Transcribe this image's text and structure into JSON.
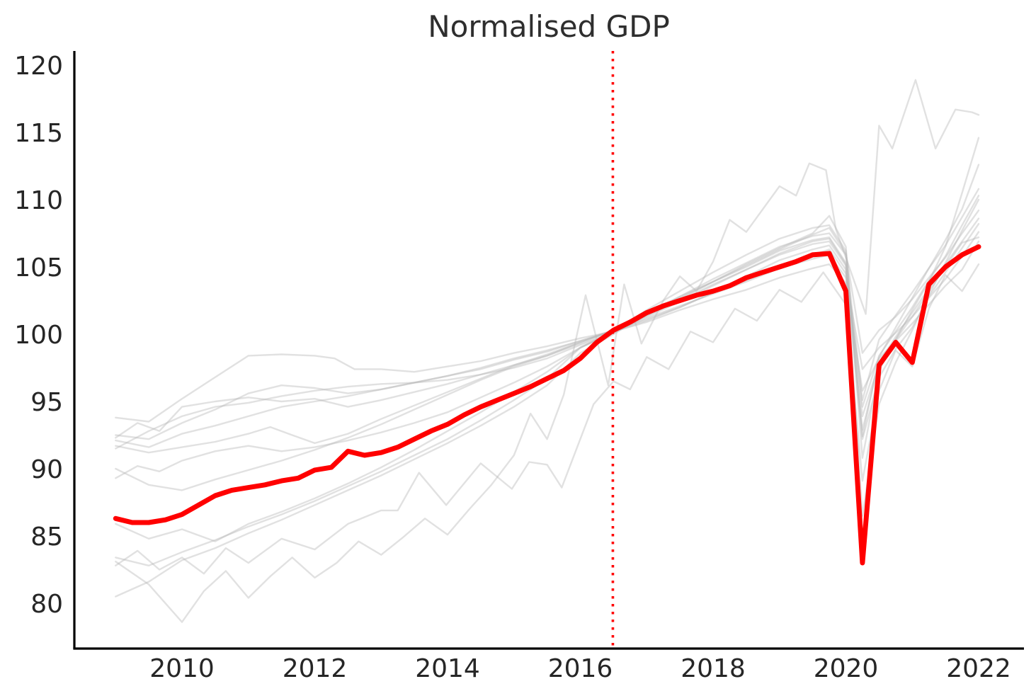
{
  "title": "Normalised GDP",
  "colors": {
    "highlight": "#ff0000",
    "event_line": "#ff0000",
    "background_lines": "#b8b8b8",
    "axis": "#000000",
    "text": "#262626",
    "background": "#ffffff"
  },
  "chart_data": {
    "type": "line",
    "title": "Normalised GDP",
    "xlabel": "",
    "ylabel": "",
    "grid": false,
    "legend": "none",
    "x_ticks": [
      2010,
      2012,
      2014,
      2016,
      2018,
      2020,
      2022
    ],
    "y_ticks": [
      80,
      85,
      90,
      95,
      100,
      105,
      110,
      115,
      120
    ],
    "x_range": [
      2008.38,
      2022.68
    ],
    "y_range": [
      76.6,
      121.1
    ],
    "event_line": {
      "x": 2016.49,
      "style": "dotted",
      "color": "#ff0000"
    },
    "normalization_note": "all series pass near 100 at the dotted line (mid-2016)",
    "highlight_series": {
      "name": "highlighted-country",
      "color": "#ff0000",
      "x": [
        2009.0,
        2009.25,
        2009.5,
        2009.75,
        2010.0,
        2010.25,
        2010.5,
        2010.75,
        2011.0,
        2011.25,
        2011.5,
        2011.75,
        2012.0,
        2012.25,
        2012.5,
        2012.75,
        2013.0,
        2013.25,
        2013.5,
        2013.75,
        2014.0,
        2014.25,
        2014.5,
        2014.75,
        2015.0,
        2015.25,
        2015.5,
        2015.75,
        2016.0,
        2016.25,
        2016.5,
        2016.75,
        2017.0,
        2017.25,
        2017.5,
        2017.75,
        2018.0,
        2018.25,
        2018.5,
        2018.75,
        2019.0,
        2019.25,
        2019.5,
        2019.75,
        2020.0,
        2020.25,
        2020.5,
        2020.75,
        2021.0,
        2021.25,
        2021.5,
        2021.75,
        2022.0
      ],
      "values": [
        86.3,
        86.0,
        86.0,
        86.2,
        86.6,
        87.3,
        88.0,
        88.4,
        88.6,
        88.8,
        89.1,
        89.3,
        89.9,
        90.1,
        91.3,
        91.0,
        91.2,
        91.6,
        92.2,
        92.8,
        93.3,
        94.0,
        94.6,
        95.1,
        95.6,
        96.1,
        96.7,
        97.3,
        98.2,
        99.4,
        100.3,
        100.9,
        101.6,
        102.1,
        102.5,
        102.9,
        103.2,
        103.6,
        104.2,
        104.6,
        105.0,
        105.4,
        105.9,
        106.0,
        103.2,
        83.0,
        97.7,
        99.4,
        97.9,
        103.7,
        105.0,
        105.9,
        106.5
      ]
    },
    "background_series": [
      {
        "name": "gray-1",
        "x": [
          2009,
          2009.5,
          2010,
          2010.5,
          2011,
          2011.5,
          2012,
          2012.3,
          2012.6,
          2013,
          2013.5,
          2014,
          2014.5,
          2015,
          2015.5,
          2016,
          2016.5,
          2017,
          2017.5,
          2018,
          2018.5,
          2019,
          2019.5,
          2019.75,
          2020,
          2020.25,
          2020.5,
          2020.75,
          2021,
          2021.25,
          2021.5,
          2021.75,
          2022
        ],
        "values": [
          93.8,
          93.5,
          95.2,
          96.8,
          98.4,
          98.5,
          98.4,
          98.2,
          97.4,
          97.4,
          97.2,
          97.6,
          98.0,
          98.6,
          99.1,
          99.7,
          100.2,
          100.9,
          101.8,
          102.6,
          103.3,
          104.2,
          104.9,
          105.2,
          103.8,
          95.8,
          98.2,
          99.5,
          100.8,
          102.2,
          103.6,
          104.8,
          106.9
        ]
      },
      {
        "name": "gray-2",
        "x": [
          2009,
          2009.5,
          2010,
          2010.5,
          2011,
          2011.5,
          2012,
          2012.5,
          2013,
          2013.5,
          2014,
          2014.5,
          2015,
          2015.5,
          2016,
          2016.5,
          2017,
          2017.5,
          2018,
          2018.5,
          2019,
          2019.5,
          2019.75,
          2020,
          2020.25,
          2020.5,
          2020.75,
          2021,
          2021.25,
          2021.5,
          2021.75,
          2022
        ],
        "values": [
          92.5,
          92.2,
          93.4,
          94.4,
          95.6,
          96.2,
          96.0,
          95.6,
          95.9,
          96.4,
          96.9,
          97.4,
          98.1,
          98.7,
          99.5,
          100.3,
          101.1,
          102.0,
          103.1,
          104.0,
          105.1,
          105.9,
          106.3,
          104.5,
          92.2,
          96.8,
          98.9,
          100.5,
          102.8,
          104.6,
          106.4,
          108.2
        ]
      },
      {
        "name": "gray-3",
        "x": [
          2009,
          2009.33,
          2009.66,
          2010,
          2010.5,
          2011,
          2011.5,
          2012,
          2012.5,
          2013,
          2013.5,
          2014,
          2014.5,
          2015,
          2015.5,
          2016,
          2016.5,
          2017,
          2017.5,
          2018,
          2018.5,
          2019,
          2019.5,
          2019.75,
          2020,
          2020.25,
          2020.5,
          2020.75,
          2021,
          2021.25,
          2021.5,
          2021.75,
          2022
        ],
        "values": [
          92.3,
          93.4,
          92.8,
          94.6,
          95.0,
          95.3,
          95.0,
          95.2,
          94.6,
          95.1,
          95.7,
          96.3,
          97.0,
          97.7,
          98.4,
          99.4,
          100.3,
          101.3,
          102.4,
          103.6,
          104.8,
          106.0,
          106.9,
          107.1,
          105.2,
          94.6,
          98.4,
          100.2,
          102.0,
          104.0,
          105.8,
          108.1,
          110.3
        ]
      },
      {
        "name": "gray-4",
        "x": [
          2009,
          2009.5,
          2010,
          2010.5,
          2011,
          2011.5,
          2012,
          2012.5,
          2013,
          2013.5,
          2014,
          2014.5,
          2015,
          2015.5,
          2016,
          2016.5,
          2017,
          2017.5,
          2018,
          2018.5,
          2019,
          2019.5,
          2019.75,
          2020,
          2020.25,
          2020.5,
          2020.75,
          2021,
          2021.25,
          2021.5,
          2021.75,
          2022
        ],
        "values": [
          92.1,
          91.6,
          92.6,
          93.2,
          93.9,
          94.6,
          95.0,
          95.4,
          95.9,
          96.4,
          96.9,
          97.5,
          98.2,
          98.8,
          99.5,
          100.2,
          101.2,
          102.1,
          103.0,
          103.9,
          104.9,
          105.6,
          105.9,
          104.2,
          97.4,
          99.0,
          100.1,
          101.3,
          102.7,
          104.1,
          105.8,
          107.6
        ]
      },
      {
        "name": "gray-5",
        "x": [
          2009,
          2009.5,
          2010,
          2010.5,
          2011,
          2011.33,
          2011.66,
          2012,
          2012.5,
          2013,
          2013.5,
          2014,
          2014.5,
          2015,
          2015.5,
          2016,
          2016.5,
          2017,
          2017.5,
          2018,
          2018.5,
          2019,
          2019.5,
          2019.75,
          2020,
          2020.25,
          2020.5,
          2020.75,
          2021,
          2021.25,
          2021.5,
          2021.75,
          2022
        ],
        "values": [
          91.7,
          91.2,
          91.6,
          92.0,
          92.6,
          93.1,
          92.5,
          91.9,
          92.6,
          93.7,
          94.7,
          95.7,
          96.7,
          97.7,
          98.5,
          99.4,
          100.3,
          101.5,
          102.8,
          104.1,
          105.3,
          106.5,
          107.3,
          107.5,
          105.9,
          95.1,
          99.6,
          101.4,
          103.1,
          104.9,
          106.6,
          108.7,
          110.8
        ]
      },
      {
        "name": "gray-6",
        "x": [
          2009,
          2009.5,
          2010,
          2010.5,
          2011,
          2011.5,
          2012,
          2012.5,
          2013,
          2013.5,
          2014,
          2014.5,
          2015,
          2015.5,
          2016,
          2016.5,
          2017,
          2017.5,
          2018,
          2018.5,
          2019,
          2019.5,
          2019.75,
          2020,
          2020.25,
          2020.5,
          2020.75,
          2021,
          2021.25,
          2021.5,
          2021.75,
          2022
        ],
        "values": [
          91.5,
          92.8,
          93.9,
          94.6,
          94.9,
          95.4,
          95.8,
          96.1,
          96.3,
          96.4,
          96.6,
          97.0,
          97.5,
          98.2,
          99.2,
          100.1,
          101.4,
          102.6,
          103.9,
          105.1,
          106.3,
          107.4,
          107.9,
          106.0,
          98.6,
          100.3,
          101.3,
          102.6,
          104.2,
          105.7,
          107.5,
          109.2
        ]
      },
      {
        "name": "gray-7",
        "x": [
          2009,
          2009.5,
          2010,
          2010.5,
          2011,
          2011.5,
          2012,
          2012.5,
          2013,
          2013.5,
          2014,
          2014.5,
          2015,
          2015.5,
          2016,
          2016.5,
          2017,
          2017.5,
          2018,
          2018.5,
          2019,
          2019.5,
          2019.75,
          2020,
          2020.25,
          2020.5,
          2020.75,
          2021,
          2021.25,
          2021.5,
          2021.75,
          2022
        ],
        "values": [
          90.0,
          88.8,
          88.4,
          89.2,
          89.9,
          90.6,
          91.4,
          92.3,
          93.3,
          94.4,
          95.5,
          96.6,
          97.6,
          98.4,
          99.3,
          100.2,
          101.0,
          102.0,
          103.1,
          104.3,
          105.5,
          106.3,
          106.6,
          104.8,
          92.9,
          97.9,
          99.8,
          101.6,
          103.4,
          105.2,
          106.9,
          108.6
        ]
      },
      {
        "name": "gray-8",
        "x": [
          2009,
          2009.33,
          2009.66,
          2010,
          2010.5,
          2011,
          2011.5,
          2012,
          2012.5,
          2013,
          2013.5,
          2014,
          2014.5,
          2015,
          2015.5,
          2016,
          2016.5,
          2017,
          2017.5,
          2018,
          2018.5,
          2019,
          2019.5,
          2019.75,
          2020,
          2020.25,
          2020.5,
          2020.75,
          2021,
          2021.25,
          2021.5,
          2021.75,
          2022
        ],
        "values": [
          89.3,
          90.2,
          89.8,
          90.6,
          91.3,
          91.7,
          91.3,
          91.6,
          92.1,
          92.7,
          93.4,
          94.2,
          95.3,
          96.4,
          97.6,
          99.0,
          100.2,
          101.6,
          102.8,
          103.9,
          105.2,
          106.4,
          107.5,
          108.8,
          106.5,
          90.8,
          97.3,
          99.6,
          101.8,
          103.9,
          106.5,
          110.5,
          114.6
        ]
      },
      {
        "name": "gray-9-volatile",
        "x": [
          2009,
          2009.5,
          2010,
          2010.33,
          2010.66,
          2011,
          2011.33,
          2011.66,
          2012,
          2012.33,
          2012.66,
          2013,
          2013.33,
          2013.66,
          2014,
          2014.33,
          2014.66,
          2015,
          2015.25,
          2015.5,
          2015.75,
          2016.08,
          2016.42,
          2016.66,
          2016.92,
          2017.25,
          2017.5,
          2017.75,
          2018,
          2018.25,
          2018.5,
          2019,
          2019.25,
          2019.45,
          2019.7,
          2019.85,
          2020.05,
          2020.3,
          2020.5,
          2020.7,
          2021.05,
          2021.35,
          2021.65,
          2021.9,
          2022
        ],
        "values": [
          83.1,
          81.4,
          78.6,
          80.9,
          82.4,
          80.4,
          82.0,
          83.4,
          81.9,
          83.0,
          84.6,
          83.6,
          84.9,
          86.3,
          85.1,
          87.0,
          88.8,
          91.0,
          94.1,
          92.2,
          95.5,
          102.9,
          96.2,
          103.7,
          99.3,
          102.5,
          104.3,
          103.2,
          105.4,
          108.5,
          107.6,
          111.0,
          110.3,
          112.7,
          112.2,
          107.8,
          105.0,
          101.5,
          115.5,
          113.8,
          118.9,
          113.8,
          116.7,
          116.5,
          116.3
        ]
      },
      {
        "name": "gray-10",
        "x": [
          2009,
          2009.5,
          2010,
          2010.5,
          2011,
          2011.5,
          2012,
          2012.5,
          2013,
          2013.5,
          2014,
          2014.5,
          2015,
          2015.5,
          2016,
          2016.5,
          2017,
          2017.5,
          2018,
          2018.5,
          2019,
          2019.5,
          2019.75,
          2020,
          2020.25,
          2020.5,
          2020.75,
          2021,
          2021.25,
          2021.5,
          2021.75,
          2022
        ],
        "values": [
          83.4,
          82.8,
          83.8,
          84.7,
          85.7,
          86.6,
          87.6,
          88.7,
          89.8,
          91.0,
          92.2,
          93.6,
          95.1,
          96.7,
          99.0,
          100.2,
          101.8,
          103.2,
          104.6,
          105.9,
          107.1,
          107.9,
          108.1,
          106.2,
          92.4,
          98.3,
          100.5,
          102.7,
          104.9,
          107.0,
          109.3,
          112.6
        ]
      },
      {
        "name": "gray-11-jagged",
        "x": [
          2009,
          2009.33,
          2009.66,
          2010,
          2010.33,
          2010.66,
          2011,
          2011.5,
          2012,
          2012.5,
          2013,
          2013.25,
          2013.57,
          2013.98,
          2014.5,
          2014.97,
          2015.23,
          2015.5,
          2015.72,
          2016.2,
          2016.5,
          2016.75,
          2017,
          2017.33,
          2017.66,
          2018,
          2018.33,
          2018.66,
          2019,
          2019.33,
          2019.66,
          2020,
          2020.25,
          2020.5,
          2020.75,
          2021,
          2021.25,
          2021.5,
          2021.75,
          2022
        ],
        "values": [
          82.8,
          83.9,
          82.5,
          83.4,
          82.2,
          84.1,
          83.0,
          84.8,
          84.0,
          85.9,
          86.9,
          86.9,
          89.7,
          87.3,
          90.4,
          88.5,
          90.5,
          90.3,
          88.6,
          94.8,
          96.5,
          95.9,
          98.3,
          97.4,
          100.2,
          99.4,
          101.9,
          101.0,
          103.3,
          102.4,
          104.6,
          102.2,
          89.1,
          95.8,
          98.8,
          97.6,
          101.9,
          104.4,
          103.2,
          105.2
        ]
      },
      {
        "name": "gray-12",
        "x": [
          2009,
          2009.5,
          2010,
          2010.5,
          2011,
          2011.5,
          2012,
          2012.5,
          2013,
          2013.5,
          2014,
          2014.5,
          2015,
          2015.5,
          2016,
          2016.5,
          2017,
          2017.5,
          2018,
          2018.5,
          2019,
          2019.5,
          2019.75,
          2020,
          2020.25,
          2020.5,
          2020.75,
          2021,
          2021.25,
          2021.5,
          2021.75,
          2022
        ],
        "values": [
          80.5,
          81.6,
          83.2,
          84.1,
          85.2,
          86.2,
          87.3,
          88.4,
          89.5,
          90.7,
          91.9,
          93.2,
          94.6,
          96.2,
          98.6,
          100.0,
          101.5,
          102.7,
          103.9,
          105.0,
          106.2,
          107.0,
          107.2,
          105.3,
          86.5,
          94.8,
          97.9,
          100.3,
          102.9,
          105.3,
          107.7,
          110.0
        ]
      },
      {
        "name": "gray-13",
        "x": [
          2009,
          2009.5,
          2010,
          2010.5,
          2011,
          2011.5,
          2012,
          2012.5,
          2013,
          2013.5,
          2014,
          2014.5,
          2015,
          2015.5,
          2016,
          2016.5,
          2017,
          2017.5,
          2018,
          2018.5,
          2019,
          2019.5,
          2019.75,
          2020,
          2020.25,
          2020.5,
          2020.75,
          2021,
          2021.25,
          2021.5,
          2021.75,
          2022
        ],
        "values": [
          85.9,
          84.8,
          85.5,
          84.6,
          85.9,
          86.8,
          87.8,
          88.9,
          90.1,
          91.4,
          92.8,
          94.2,
          95.7,
          97.2,
          99.0,
          100.1,
          101.4,
          102.5,
          103.7,
          104.8,
          105.9,
          106.7,
          106.9,
          105.1,
          93.9,
          97.8,
          99.6,
          101.3,
          103.2,
          105.0,
          106.8,
          107.2
        ]
      }
    ]
  }
}
